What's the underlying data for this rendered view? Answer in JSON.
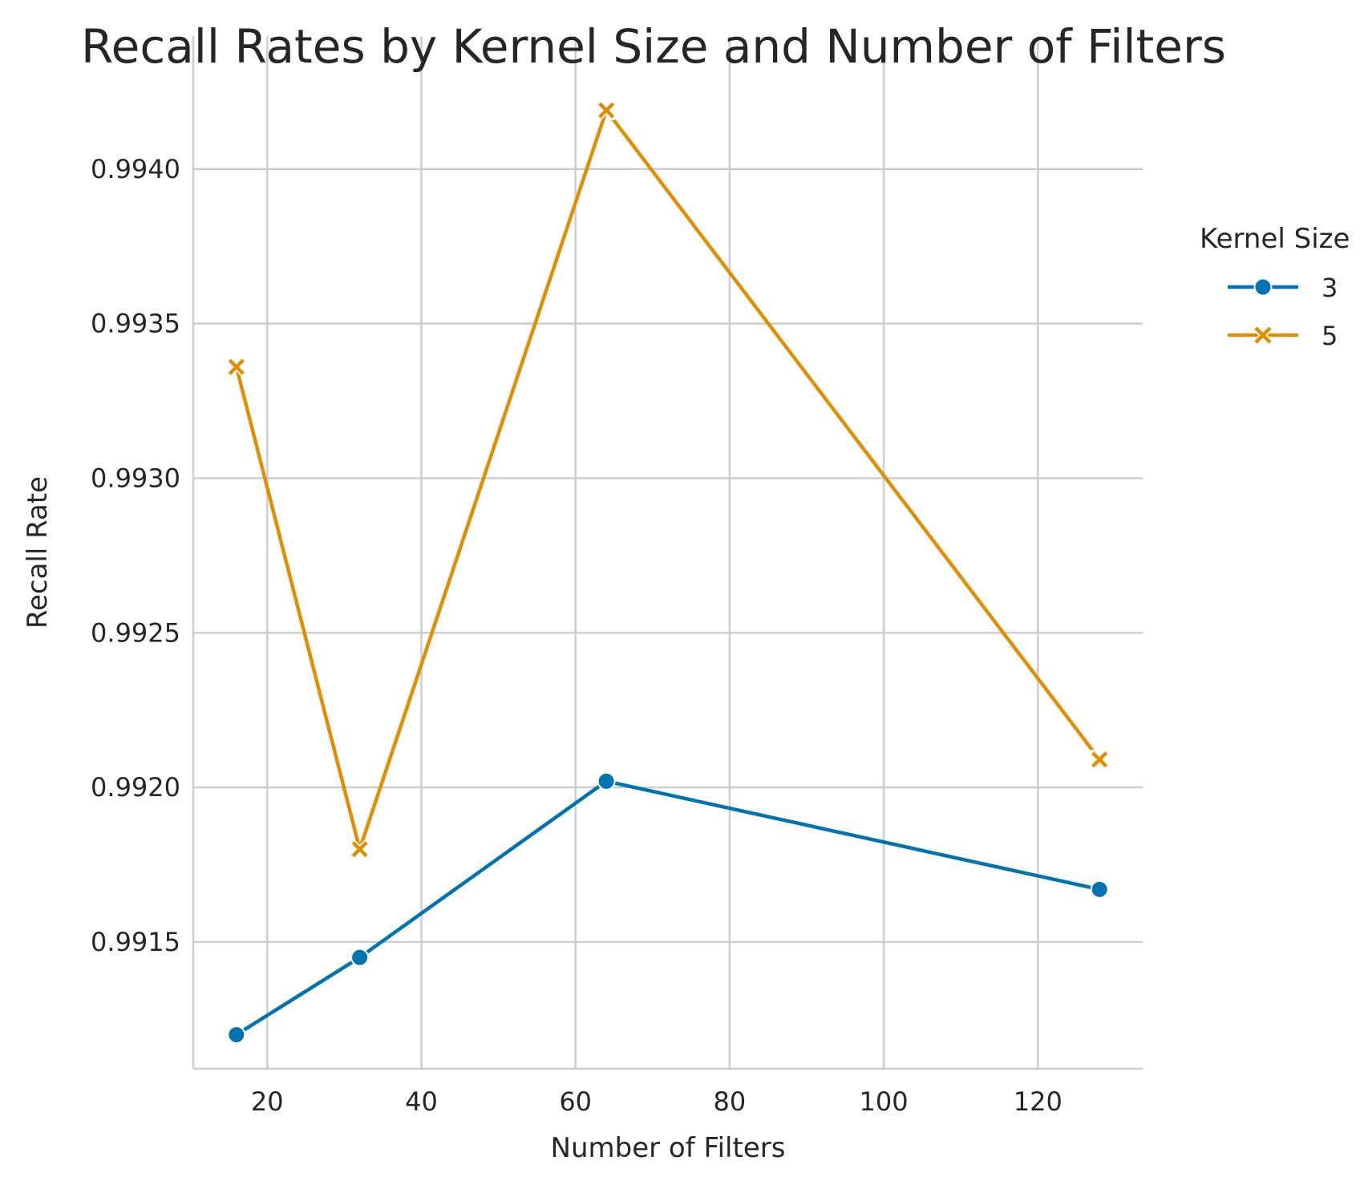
{
  "chart_data": {
    "type": "line",
    "title": "Recall Rates by Kernel Size and Number of Filters",
    "xlabel": "Number of Filters",
    "ylabel": "Recall Rate",
    "x_ticks": [
      "20",
      "40",
      "60",
      "80",
      "100",
      "120"
    ],
    "y_ticks": [
      "0.9915",
      "0.9920",
      "0.9925",
      "0.9930",
      "0.9935",
      "0.9940"
    ],
    "xlim": [
      10.4,
      133.6
    ],
    "ylim": [
      0.99109,
      0.99443
    ],
    "grid": true,
    "legend": {
      "title": "Kernel Size",
      "placement": "right, outside plot"
    },
    "series": [
      {
        "name": "3",
        "marker": "circle",
        "color": "#0173b2",
        "points": [
          {
            "x": 16,
            "y": 0.9912
          },
          {
            "x": 32,
            "y": 0.99145
          },
          {
            "x": 64,
            "y": 0.99202
          },
          {
            "x": 128,
            "y": 0.99167
          }
        ]
      },
      {
        "name": "5",
        "marker": "x",
        "color": "#de8f05",
        "points": [
          {
            "x": 16,
            "y": 0.99336
          },
          {
            "x": 32,
            "y": 0.9918
          },
          {
            "x": 64,
            "y": 0.99419
          },
          {
            "x": 128,
            "y": 0.99209
          }
        ]
      }
    ]
  }
}
